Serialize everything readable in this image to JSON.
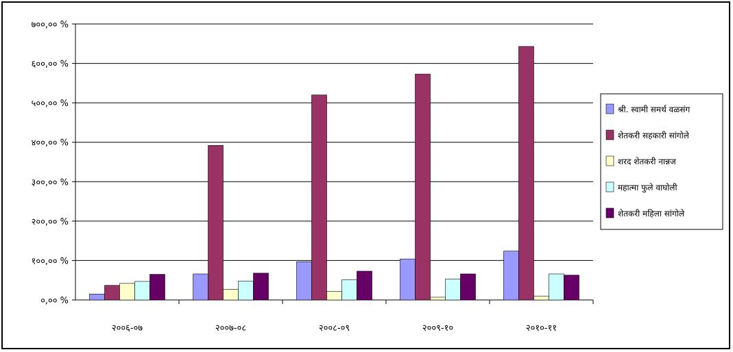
{
  "chart_data": {
    "type": "bar",
    "categories": [
      "२००६-०७",
      "२००७-०८",
      "२००८-०९",
      "२००९-१०",
      "२०१०-११"
    ],
    "y_tick_labels": [
      "०,०० %",
      "१००,०० %",
      "२००,०० %",
      "३००,०० %",
      "४००,०० %",
      "५००,०० %",
      "६००,०० %",
      "७००,०० %"
    ],
    "ylim": [
      0,
      700
    ],
    "grid": true,
    "legend_position": "right",
    "series": [
      {
        "name": "श्री. स्वामी समर्थ वळसंग",
        "color": "#9999ff",
        "values": [
          15,
          66,
          97,
          104,
          124
        ]
      },
      {
        "name": "शेतकरी सहकारी सांगोले",
        "color": "#993366",
        "values": [
          37,
          392,
          520,
          573,
          643
        ]
      },
      {
        "name": "शरद शेतकरी नान्नज",
        "color": "#ffffcc",
        "values": [
          42,
          27,
          22,
          7,
          10
        ]
      },
      {
        "name": "महात्मा फुले वाघोली",
        "color": "#ccffff",
        "values": [
          47,
          48,
          51,
          53,
          66
        ]
      },
      {
        "name": "शेतकरी महिला सांगोले",
        "color": "#660066",
        "values": [
          65,
          68,
          73,
          66,
          63
        ]
      }
    ]
  }
}
